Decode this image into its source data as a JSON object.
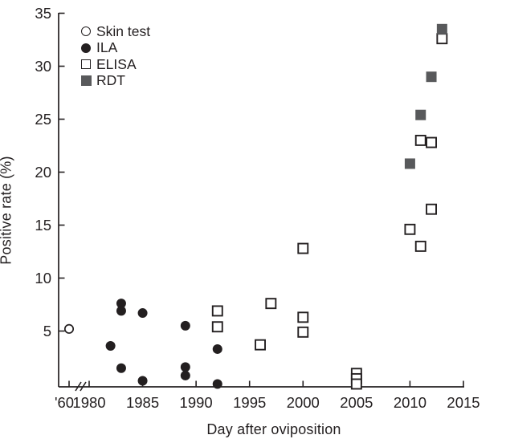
{
  "chart_data": {
    "type": "scatter",
    "title": "",
    "xlabel": "Day after oviposition",
    "ylabel": "Positive rate (%)",
    "x_axis": {
      "pre_break_tick_label": "'60",
      "axis_break_after_first_tick": true,
      "ticks": [
        1980,
        1985,
        1990,
        1995,
        2000,
        2005,
        2010,
        2015
      ]
    },
    "y_axis": {
      "min": 0,
      "max": 35,
      "ticks": [
        5,
        10,
        15,
        20,
        25,
        30,
        35
      ]
    },
    "legend_position": "top-left-inside",
    "grid": false,
    "colors": {
      "axis_and_black_markers": "#231f20",
      "rdt_gray": "#58595b",
      "background": "#ffffff"
    },
    "series": [
      {
        "name": "Skin test",
        "marker": "circle-open",
        "points": [
          [
            1960,
            5.2
          ]
        ]
      },
      {
        "name": "ILA",
        "marker": "circle-filled",
        "points": [
          [
            1982,
            3.6
          ],
          [
            1983,
            7.6
          ],
          [
            1983,
            6.9
          ],
          [
            1983,
            1.5
          ],
          [
            1985,
            6.7
          ],
          [
            1985,
            0.3
          ],
          [
            1989,
            5.5
          ],
          [
            1989,
            1.6
          ],
          [
            1989,
            0.8
          ],
          [
            1992,
            3.3
          ],
          [
            1992,
            0.0
          ]
        ]
      },
      {
        "name": "ELISA",
        "marker": "square-open",
        "points": [
          [
            1992,
            6.9
          ],
          [
            1992,
            5.4
          ],
          [
            1996,
            3.7
          ],
          [
            1997,
            7.6
          ],
          [
            2000,
            12.8
          ],
          [
            2000,
            6.3
          ],
          [
            2000,
            4.9
          ],
          [
            2005,
            1.0
          ],
          [
            2005,
            0.5
          ],
          [
            2005,
            0.0
          ],
          [
            2010,
            14.6
          ],
          [
            2011,
            23.0
          ],
          [
            2011,
            13.0
          ],
          [
            2012,
            22.8
          ],
          [
            2012,
            16.5
          ],
          [
            2013,
            32.6
          ]
        ]
      },
      {
        "name": "RDT",
        "marker": "square-filled",
        "points": [
          [
            2010,
            20.8
          ],
          [
            2011,
            25.4
          ],
          [
            2012,
            29.0
          ],
          [
            2013,
            33.5
          ]
        ]
      }
    ]
  }
}
